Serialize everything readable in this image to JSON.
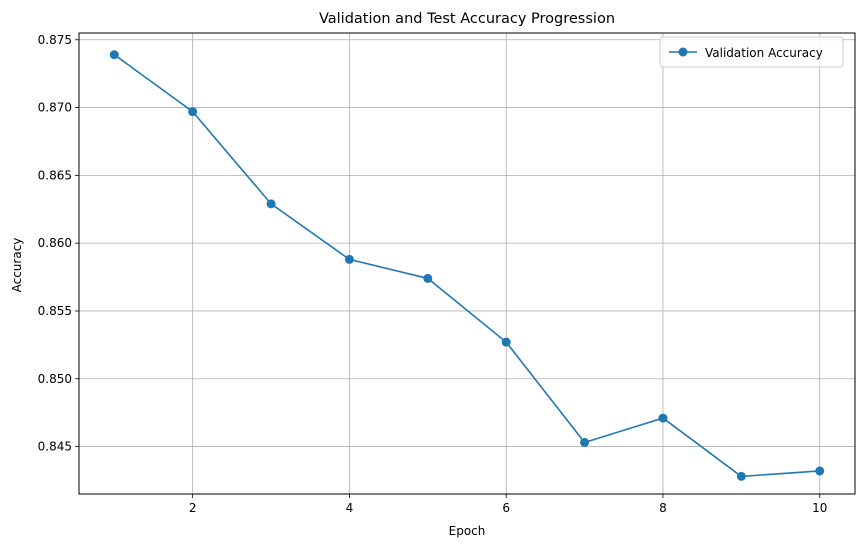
{
  "chart_data": {
    "type": "line",
    "title": "Validation and Test Accuracy Progression",
    "xlabel": "Epoch",
    "ylabel": "Accuracy",
    "xlim": [
      0.55,
      10.45
    ],
    "ylim": [
      0.8415,
      0.8755
    ],
    "x_ticks": [
      2,
      4,
      6,
      8,
      10
    ],
    "x_tick_labels": [
      "2",
      "4",
      "6",
      "8",
      "10"
    ],
    "y_ticks": [
      0.845,
      0.85,
      0.855,
      0.86,
      0.865,
      0.87,
      0.875
    ],
    "y_tick_labels": [
      "0.845",
      "0.850",
      "0.855",
      "0.860",
      "0.865",
      "0.870",
      "0.875"
    ],
    "grid": true,
    "legend_position": "top-right",
    "series": [
      {
        "name": "Validation Accuracy",
        "color": "#1f77b4",
        "marker": "circle",
        "x": [
          1,
          2,
          3,
          4,
          5,
          6,
          7,
          8,
          9,
          10
        ],
        "values": [
          0.8739,
          0.8697,
          0.8629,
          0.8588,
          0.8574,
          0.8527,
          0.8453,
          0.8471,
          0.8428,
          0.8432
        ]
      }
    ]
  }
}
